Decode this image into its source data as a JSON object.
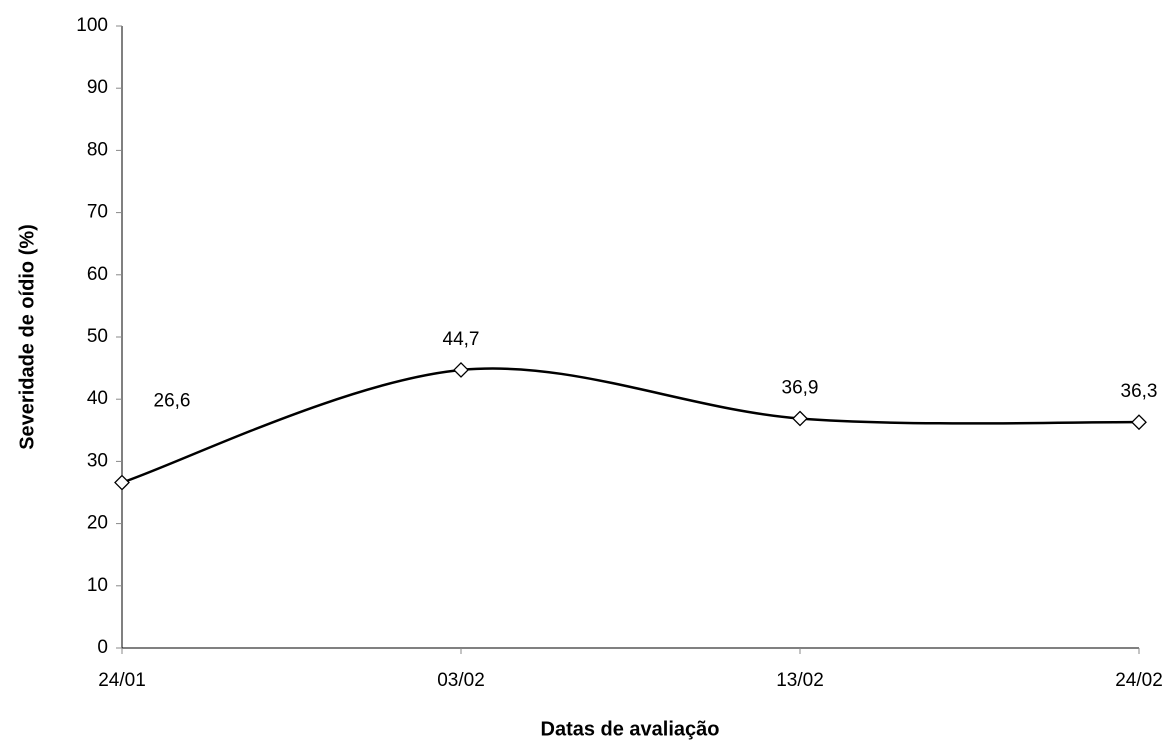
{
  "chart_data": {
    "type": "line",
    "x_label": "Datas de avaliação",
    "y_label": "Severidade de oídio (%)",
    "categories": [
      "24/01",
      "03/02",
      "13/02",
      "24/02"
    ],
    "values": [
      26.6,
      44.7,
      36.9,
      36.3
    ],
    "value_labels": [
      "26,6",
      "44,7",
      "36,9",
      "36,3"
    ],
    "color": "#000000",
    "ylim": [
      0,
      100
    ],
    "yticks": [
      0,
      10,
      20,
      30,
      40,
      50,
      60,
      70,
      80,
      90,
      100
    ],
    "grid": false
  }
}
